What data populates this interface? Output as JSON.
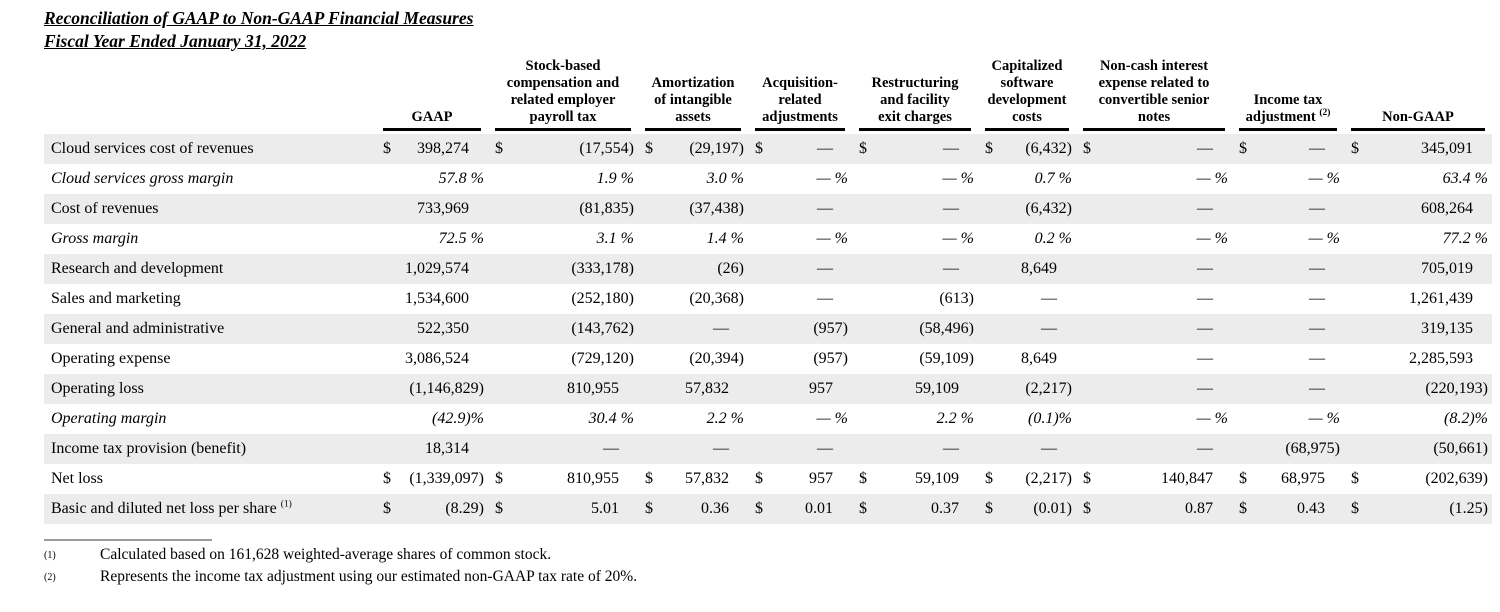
{
  "document": {
    "title_line1": "Reconciliation of GAAP to Non-GAAP Financial Measures",
    "title_line2": "Fiscal Year Ended January 31, 2022"
  },
  "colors": {
    "stripe": "#ECECEC",
    "header_rule": "#000000",
    "footnote_rule": "#9A9A9A",
    "text": "#000000"
  },
  "table": {
    "columns": [
      {
        "lines": [
          "GAAP"
        ]
      },
      {
        "lines": [
          "Stock-based",
          "compensation and",
          "related employer",
          "payroll tax"
        ]
      },
      {
        "lines": [
          "Amortization",
          "of intangible",
          "assets"
        ]
      },
      {
        "lines": [
          "Acquisition-",
          "related",
          "adjustments"
        ]
      },
      {
        "lines": [
          "Restructuring",
          "and facility",
          "exit charges"
        ]
      },
      {
        "lines": [
          "Capitalized",
          "software",
          "development",
          "costs"
        ]
      },
      {
        "lines": [
          "Non-cash interest",
          "expense related to",
          "convertible senior",
          "notes"
        ]
      },
      {
        "lines": [
          "Income tax",
          "adjustment"
        ],
        "sup": "(2)"
      },
      {
        "lines": [
          "Non-GAAP"
        ]
      }
    ],
    "rows": [
      {
        "label": "Cloud services cost of revenues",
        "italic": false,
        "cells": [
          {
            "cur": "$",
            "val": "398,274"
          },
          {
            "cur": "$",
            "val": "(17,554)"
          },
          {
            "cur": "$",
            "val": "(29,197)"
          },
          {
            "cur": "$",
            "val": "—"
          },
          {
            "cur": "$",
            "val": "—"
          },
          {
            "cur": "$",
            "val": "(6,432)"
          },
          {
            "cur": "$",
            "val": "—"
          },
          {
            "cur": "$",
            "val": "—"
          },
          {
            "cur": "$",
            "val": "345,091"
          }
        ]
      },
      {
        "label": "Cloud services gross margin",
        "italic": true,
        "cells": [
          {
            "val": "57.8 %"
          },
          {
            "val": "1.9 %"
          },
          {
            "val": "3.0 %"
          },
          {
            "val": "— %"
          },
          {
            "val": "— %"
          },
          {
            "val": "0.7 %"
          },
          {
            "val": "— %"
          },
          {
            "val": "— %"
          },
          {
            "val": "63.4 %"
          }
        ]
      },
      {
        "label": "Cost of revenues",
        "italic": false,
        "cells": [
          {
            "val": "733,969"
          },
          {
            "val": "(81,835)"
          },
          {
            "val": "(37,438)"
          },
          {
            "val": "—"
          },
          {
            "val": "—"
          },
          {
            "val": "(6,432)"
          },
          {
            "val": "—"
          },
          {
            "val": "—"
          },
          {
            "val": "608,264"
          }
        ]
      },
      {
        "label": "Gross margin",
        "italic": true,
        "cells": [
          {
            "val": "72.5 %"
          },
          {
            "val": "3.1 %"
          },
          {
            "val": "1.4 %"
          },
          {
            "val": "— %"
          },
          {
            "val": "— %"
          },
          {
            "val": "0.2 %"
          },
          {
            "val": "— %"
          },
          {
            "val": "— %"
          },
          {
            "val": "77.2 %"
          }
        ]
      },
      {
        "label": "Research and development",
        "italic": false,
        "cells": [
          {
            "val": "1,029,574"
          },
          {
            "val": "(333,178)"
          },
          {
            "val": "(26)"
          },
          {
            "val": "—"
          },
          {
            "val": "—"
          },
          {
            "val": "8,649"
          },
          {
            "val": "—"
          },
          {
            "val": "—"
          },
          {
            "val": "705,019"
          }
        ]
      },
      {
        "label": "Sales and marketing",
        "italic": false,
        "cells": [
          {
            "val": "1,534,600"
          },
          {
            "val": "(252,180)"
          },
          {
            "val": "(20,368)"
          },
          {
            "val": "—"
          },
          {
            "val": "(613)"
          },
          {
            "val": "—"
          },
          {
            "val": "—"
          },
          {
            "val": "—"
          },
          {
            "val": "1,261,439"
          }
        ]
      },
      {
        "label": "General and administrative",
        "italic": false,
        "cells": [
          {
            "val": "522,350"
          },
          {
            "val": "(143,762)"
          },
          {
            "val": "—"
          },
          {
            "val": "(957)"
          },
          {
            "val": "(58,496)"
          },
          {
            "val": "—"
          },
          {
            "val": "—"
          },
          {
            "val": "—"
          },
          {
            "val": "319,135"
          }
        ]
      },
      {
        "label": "Operating expense",
        "italic": false,
        "cells": [
          {
            "val": "3,086,524"
          },
          {
            "val": "(729,120)"
          },
          {
            "val": "(20,394)"
          },
          {
            "val": "(957)"
          },
          {
            "val": "(59,109)"
          },
          {
            "val": "8,649"
          },
          {
            "val": "—"
          },
          {
            "val": "—"
          },
          {
            "val": "2,285,593"
          }
        ]
      },
      {
        "label": "Operating loss",
        "italic": false,
        "cells": [
          {
            "val": "(1,146,829)"
          },
          {
            "val": "810,955"
          },
          {
            "val": "57,832"
          },
          {
            "val": "957"
          },
          {
            "val": "59,109"
          },
          {
            "val": "(2,217)"
          },
          {
            "val": "—"
          },
          {
            "val": "—"
          },
          {
            "val": "(220,193)"
          }
        ]
      },
      {
        "label": "Operating margin",
        "italic": true,
        "cells": [
          {
            "val": "(42.9)%"
          },
          {
            "val": "30.4 %"
          },
          {
            "val": "2.2 %"
          },
          {
            "val": "— %"
          },
          {
            "val": "2.2 %"
          },
          {
            "val": "(0.1)%"
          },
          {
            "val": "— %"
          },
          {
            "val": "— %"
          },
          {
            "val": "(8.2)%"
          }
        ]
      },
      {
        "label": "Income tax provision (benefit)",
        "italic": false,
        "cells": [
          {
            "val": "18,314"
          },
          {
            "val": "—"
          },
          {
            "val": "—"
          },
          {
            "val": "—"
          },
          {
            "val": "—"
          },
          {
            "val": "—"
          },
          {
            "val": "—"
          },
          {
            "val": "(68,975)"
          },
          {
            "val": "(50,661)"
          }
        ]
      },
      {
        "label": "Net loss",
        "italic": false,
        "cells": [
          {
            "cur": "$",
            "val": "(1,339,097)"
          },
          {
            "cur": "$",
            "val": "810,955"
          },
          {
            "cur": "$",
            "val": "57,832"
          },
          {
            "cur": "$",
            "val": "957"
          },
          {
            "cur": "$",
            "val": "59,109"
          },
          {
            "cur": "$",
            "val": "(2,217)"
          },
          {
            "cur": "$",
            "val": "140,847"
          },
          {
            "cur": "$",
            "val": "68,975"
          },
          {
            "cur": "$",
            "val": "(202,639)"
          }
        ]
      },
      {
        "label": "Basic and diluted net loss per share",
        "sup": "(1)",
        "italic": false,
        "cells": [
          {
            "cur": "$",
            "val": "(8.29)"
          },
          {
            "cur": "$",
            "val": "5.01"
          },
          {
            "cur": "$",
            "val": "0.36"
          },
          {
            "cur": "$",
            "val": "0.01"
          },
          {
            "cur": "$",
            "val": "0.37"
          },
          {
            "cur": "$",
            "val": "(0.01)"
          },
          {
            "cur": "$",
            "val": "0.87"
          },
          {
            "cur": "$",
            "val": "0.43"
          },
          {
            "cur": "$",
            "val": "(1.25)"
          }
        ]
      }
    ]
  },
  "footnotes": {
    "items": [
      {
        "marker": "(1)",
        "text": "Calculated based on 161,628 weighted-average shares of common stock."
      },
      {
        "marker": "(2)",
        "text": "Represents the income tax adjustment using our estimated non-GAAP tax rate of 20%."
      }
    ]
  }
}
